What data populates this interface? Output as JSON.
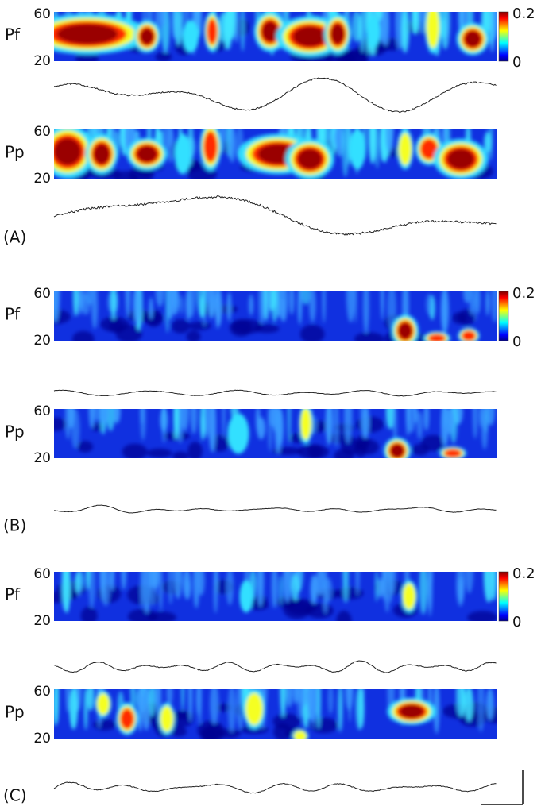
{
  "panels": [
    {
      "label": "(A)",
      "colorbar": {
        "max": "0.2",
        "min": "0"
      },
      "rows": [
        {
          "name": "Pf",
          "y_max": "60",
          "y_min": "20"
        },
        {
          "name": "Pp",
          "y_max": "60",
          "y_min": "20"
        }
      ]
    },
    {
      "label": "(B)",
      "colorbar": {
        "max": "0.2",
        "min": "0"
      },
      "rows": [
        {
          "name": "Pf",
          "y_max": "60",
          "y_min": "20"
        },
        {
          "name": "Pp",
          "y_max": "60",
          "y_min": "20"
        }
      ]
    },
    {
      "label": "(C)",
      "colorbar": {
        "max": "0.2",
        "min": "0"
      },
      "rows": [
        {
          "name": "Pf",
          "y_max": "60",
          "y_min": "20"
        },
        {
          "name": "Pp",
          "y_max": "60",
          "y_min": "20"
        }
      ]
    }
  ]
}
